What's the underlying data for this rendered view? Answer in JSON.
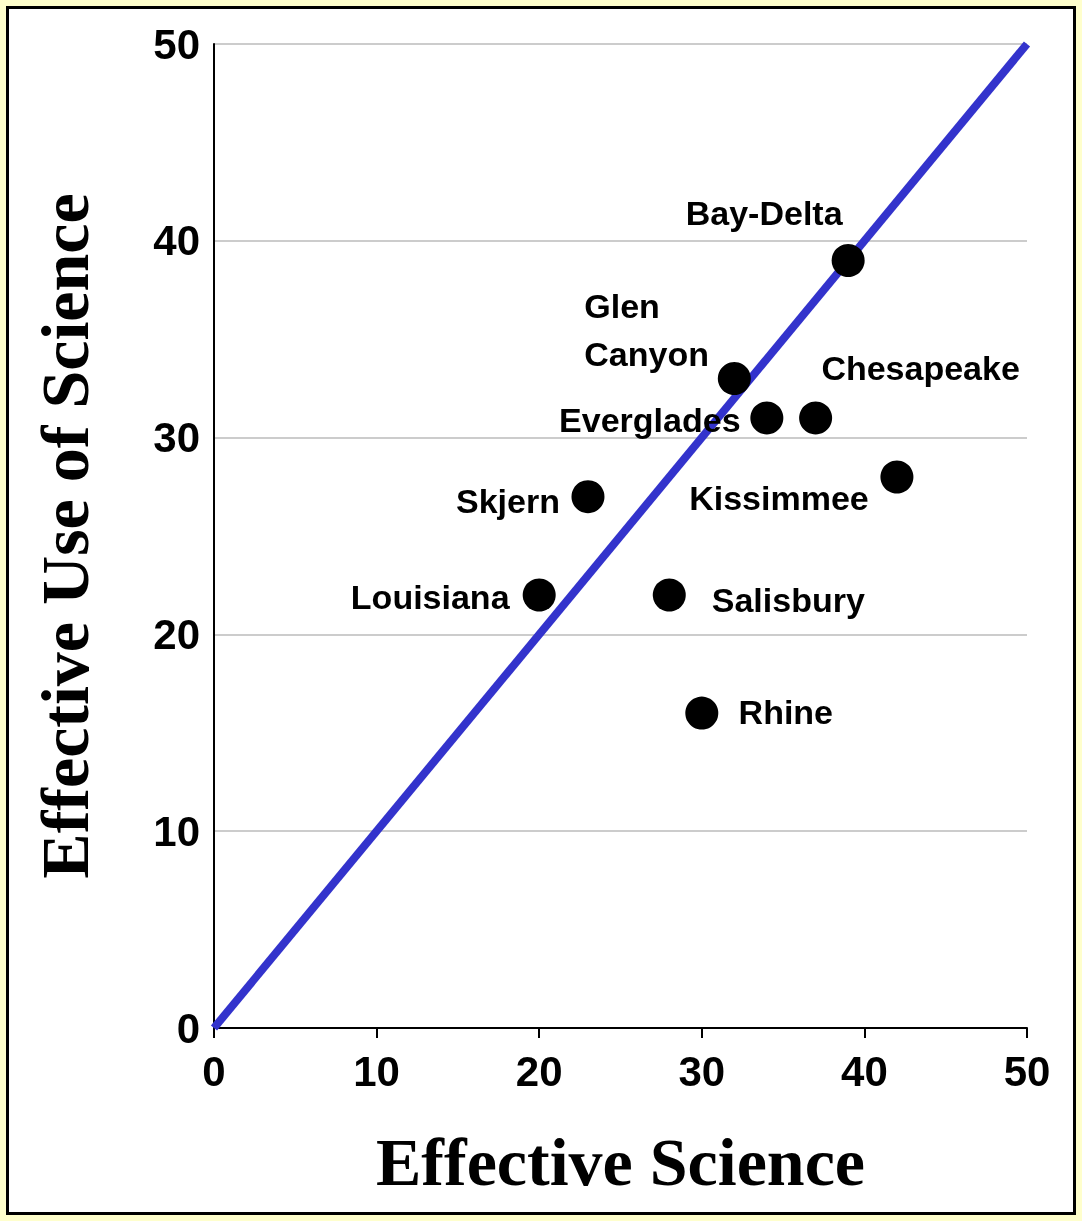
{
  "chart_data": {
    "type": "scatter",
    "xlabel": "Effective Science",
    "ylabel": "Effective Use of Science",
    "xlim": [
      0,
      50
    ],
    "ylim": [
      0,
      50
    ],
    "xticks": [
      0,
      10,
      20,
      30,
      40,
      50
    ],
    "yticks": [
      0,
      10,
      20,
      30,
      40,
      50
    ],
    "grid": "y",
    "marker": "circle",
    "series": [
      {
        "type": "line",
        "marker": "none",
        "color": "#3333cc",
        "x": [
          0,
          50
        ],
        "values": [
          0,
          50
        ]
      },
      {
        "color": "#000000",
        "x": [
          39,
          32,
          34,
          37,
          42,
          23,
          20,
          28,
          30
        ],
        "values": [
          39,
          33,
          31,
          31,
          28,
          27,
          22,
          22,
          16
        ]
      }
    ],
    "annotations": [
      {
        "text": "Bay-Delta",
        "x": 39,
        "y": 39
      },
      {
        "text": "Glen Canyon",
        "x": 32,
        "y": 33
      },
      {
        "text": "Everglades",
        "x": 34,
        "y": 31
      },
      {
        "text": "Chesapeake",
        "x": 37,
        "y": 31
      },
      {
        "text": "Kissimmee",
        "x": 42,
        "y": 28
      },
      {
        "text": "Skjern",
        "x": 23,
        "y": 27
      },
      {
        "text": "Louisiana",
        "x": 20,
        "y": 22
      },
      {
        "text": "Salisbury",
        "x": 28,
        "y": 22
      },
      {
        "text": "Rhine",
        "x": 30,
        "y": 16
      }
    ]
  }
}
